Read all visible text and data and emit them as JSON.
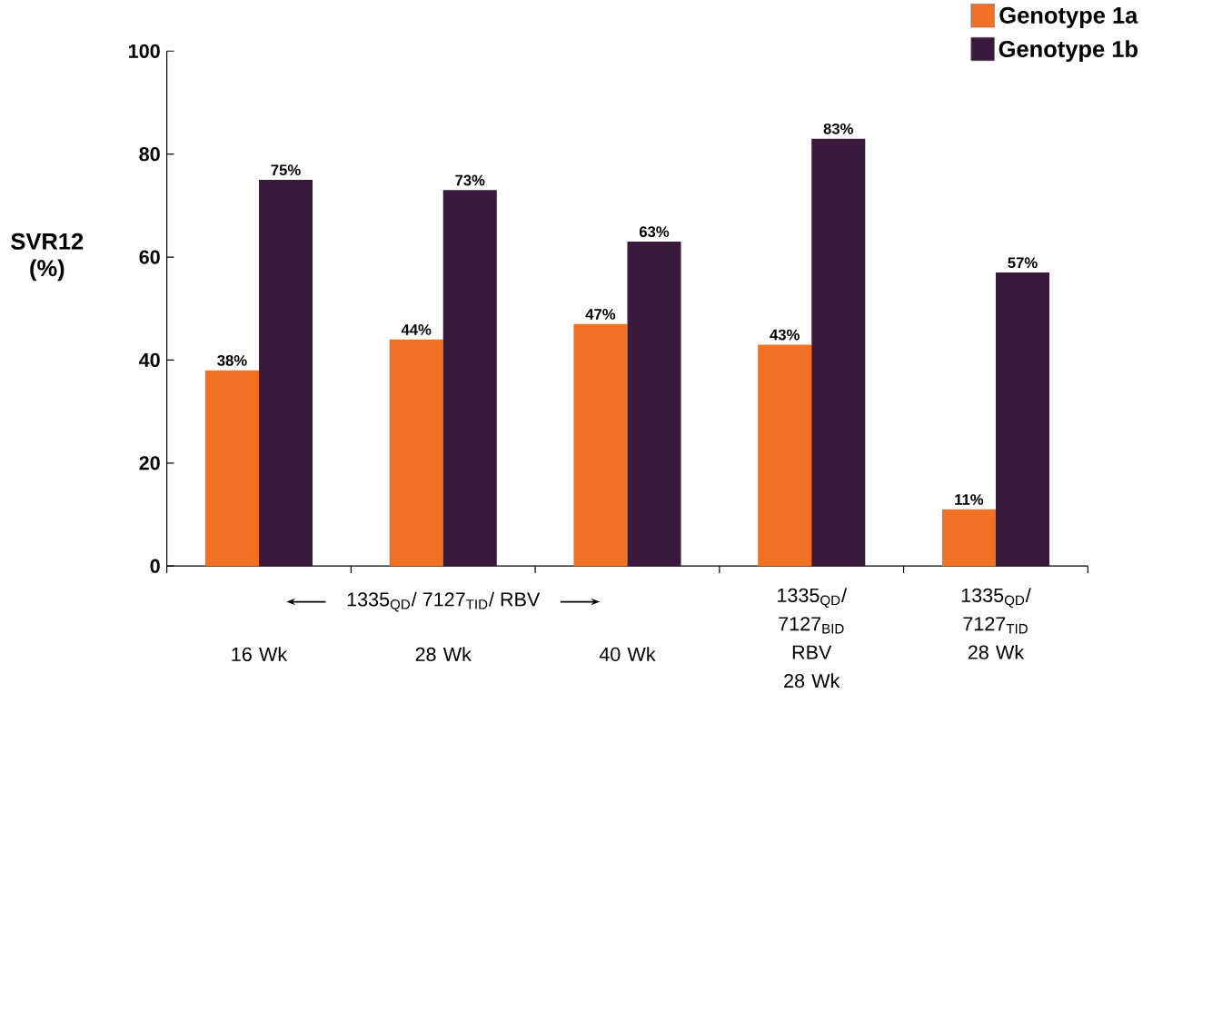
{
  "chart_data": {
    "type": "bar",
    "ylabel": "SVR12 (%)",
    "categories": [
      "16 Wk",
      "28 Wk",
      "40 Wk",
      "1335$_{QD}$/ 7127$_{BID}$ RBV 28 Wk",
      "1335$_{QD}$/ 7127$_{TID}$ 28 Wk"
    ],
    "series": [
      {
        "name": "Genotype 1a",
        "color": "#f07024",
        "values": [
          38,
          44,
          47,
          43,
          11
        ],
        "value_labels": [
          "38%",
          "44%",
          "47%",
          "43%",
          "11%"
        ]
      },
      {
        "name": "Genotype 1b",
        "color": "#3a1a3c",
        "values": [
          75,
          73,
          63,
          83,
          57
        ],
        "value_labels": [
          "75%",
          "73%",
          "63%",
          "83%",
          "57%"
        ]
      }
    ],
    "ylim": [
      0,
      100
    ],
    "yticks": [
      0,
      20,
      40,
      60,
      80,
      100
    ],
    "legend": "top right",
    "grid": false,
    "annotations": [
      "1335$_{QD}$/ 7127$_{TID}$/ RBV"
    ]
  }
}
